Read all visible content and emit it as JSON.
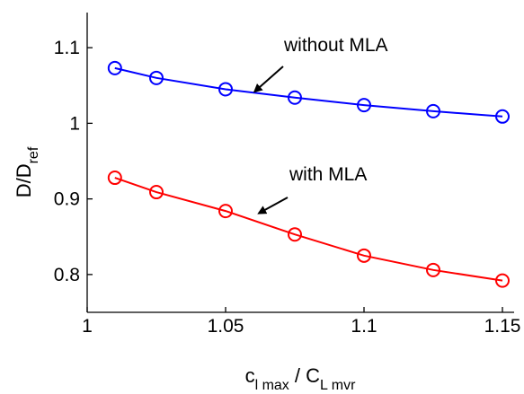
{
  "chart_data": {
    "type": "line",
    "title": "",
    "xlabel": {
      "main": "c",
      "sub": "l max",
      "sep": " / ",
      "main2": "C",
      "sub2": "L mvr"
    },
    "ylabel": {
      "main": "D/D",
      "sub": "ref"
    },
    "xlim": [
      1.0,
      1.15
    ],
    "ylim": [
      0.75,
      1.15
    ],
    "xticks": [
      1,
      1.05,
      1.1,
      1.15
    ],
    "xtick_labels": [
      "1",
      "1.05",
      "1.1",
      "1.15"
    ],
    "yticks": [
      0.8,
      0.9,
      1.0,
      1.1
    ],
    "ytick_labels": [
      "0.8",
      "0.9",
      "1",
      "1.1"
    ],
    "grid": false,
    "x": [
      1.01,
      1.025,
      1.05,
      1.075,
      1.1,
      1.125,
      1.15
    ],
    "series": [
      {
        "values": [
          1.073,
          1.06,
          1.045,
          1.034,
          1.024,
          1.016,
          1.009
        ],
        "color": "#0000ff",
        "marker": "circle"
      },
      {
        "values": [
          0.928,
          0.909,
          0.884,
          0.853,
          0.825,
          0.806,
          0.792
        ],
        "color": "#ff0000",
        "marker": "circle"
      }
    ],
    "annotations": [
      {
        "text": "without MLA",
        "arrow_to": {
          "x": 1.0605,
          "y": 1.042
        }
      },
      {
        "text": "with MLA",
        "arrow_to": {
          "x": 1.062,
          "y": 0.881
        }
      }
    ]
  }
}
